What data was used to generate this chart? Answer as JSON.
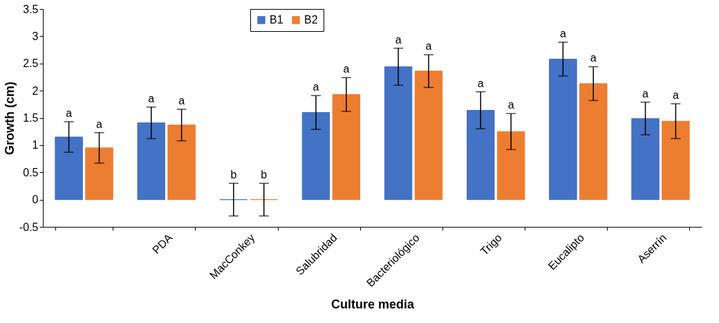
{
  "chart_data": {
    "type": "bar",
    "xlabel": "Culture media",
    "ylabel": "Growth (cm)",
    "categories": [
      null,
      "PDA",
      "MacConkey",
      "Salubridad",
      "Bacteriológico",
      "Trigo",
      "Eucalipto",
      "Aserrín"
    ],
    "series": [
      {
        "name": "B1",
        "color": "#4472c4",
        "values": [
          1.15,
          1.41,
          0,
          1.6,
          2.44,
          1.64,
          2.58,
          1.49
        ],
        "errors": [
          0.28,
          0.29,
          0.3,
          0.31,
          0.34,
          0.34,
          0.31,
          0.3
        ],
        "value_labels": [
          "a",
          "a",
          "b",
          "a",
          "a",
          "a",
          "a",
          "a"
        ]
      },
      {
        "name": "B2",
        "color": "#ed7d31",
        "values": [
          0.95,
          1.37,
          0,
          1.93,
          2.36,
          1.25,
          2.13,
          1.44
        ],
        "errors": [
          0.28,
          0.29,
          0.3,
          0.31,
          0.3,
          0.33,
          0.31,
          0.32
        ],
        "value_labels": [
          "a",
          "a",
          "b",
          "a",
          "a",
          "a",
          "a",
          "a"
        ]
      }
    ],
    "ylim": [
      -0.5,
      3.5
    ],
    "yticks": [
      -0.5,
      0,
      0.5,
      1,
      1.5,
      2,
      2.5,
      3,
      3.5
    ],
    "grid": false,
    "legend": "top"
  }
}
